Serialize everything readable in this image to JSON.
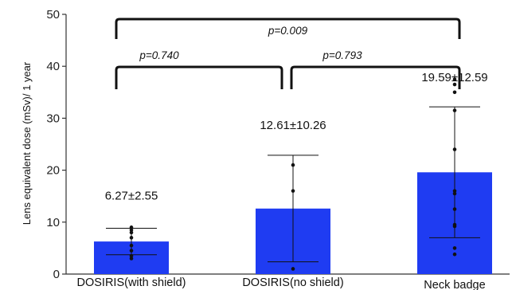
{
  "chart_data": {
    "type": "bar",
    "ylabel": "Lens equivalent dose  (mSv)/ 1 year",
    "ylim": [
      0,
      50
    ],
    "yticks": [
      0,
      10,
      20,
      30,
      40,
      50
    ],
    "grid": false,
    "colors": {
      "bar": "#1f3cf2",
      "axis": "#333333",
      "error": "#111111"
    },
    "categories": [
      "DOSIRIS(with shield)",
      "DOSIRIS(no shield)",
      "Neck badge"
    ],
    "values": [
      6.27,
      12.61,
      19.59
    ],
    "errors": [
      2.55,
      10.26,
      12.59
    ],
    "data_labels": [
      "6.27±2.55",
      "12.61±10.26",
      "19.59±12.59"
    ],
    "points": [
      [
        3.0,
        3.5,
        4.5,
        5.5,
        7.0,
        8.0,
        8.5,
        9.0
      ],
      [
        1.0,
        16.0,
        21.0
      ],
      [
        3.8,
        5.0,
        9.2,
        9.5,
        12.5,
        15.5,
        16.0,
        24.0,
        31.5,
        35.0,
        36.5,
        37.5
      ]
    ],
    "comparisons": [
      {
        "from": 0,
        "to": 1,
        "label": "p=0.740"
      },
      {
        "from": 1,
        "to": 2,
        "label": "p=0.793"
      },
      {
        "from": 0,
        "to": 2,
        "label": "p=0.009"
      }
    ]
  }
}
